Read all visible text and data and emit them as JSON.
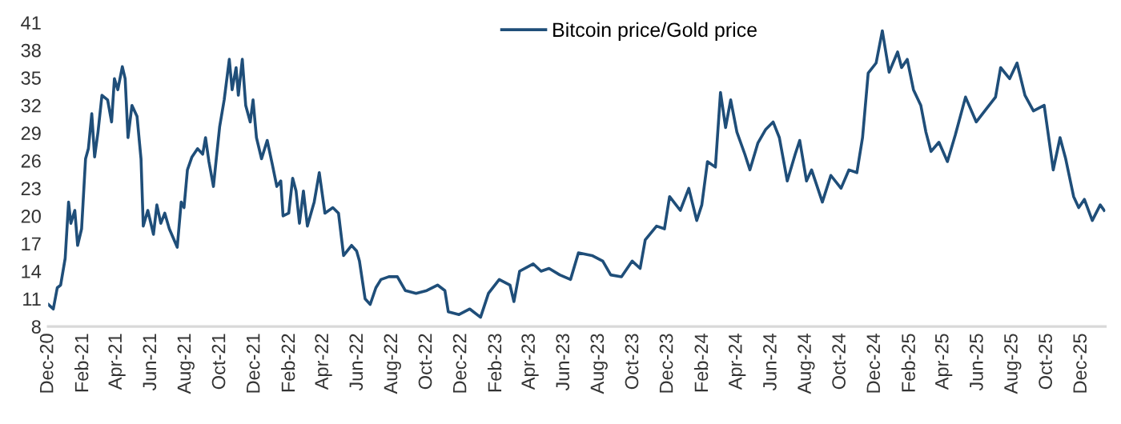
{
  "chart_data": {
    "type": "line",
    "x": [
      "2020-12-01",
      "2020-12-10",
      "2020-12-17",
      "2020-12-23",
      "2020-12-31",
      "2021-01-06",
      "2021-01-10",
      "2021-01-17",
      "2021-01-22",
      "2021-01-29",
      "2021-02-05",
      "2021-02-10",
      "2021-02-16",
      "2021-02-21",
      "2021-02-27",
      "2021-03-06",
      "2021-03-16",
      "2021-03-23",
      "2021-03-28",
      "2021-04-03",
      "2021-04-11",
      "2021-04-16",
      "2021-04-21",
      "2021-04-28",
      "2021-05-07",
      "2021-05-14",
      "2021-05-18",
      "2021-05-26",
      "2021-06-05",
      "2021-06-11",
      "2021-06-18",
      "2021-06-25",
      "2021-07-03",
      "2021-07-17",
      "2021-07-24",
      "2021-07-29",
      "2021-08-04",
      "2021-08-12",
      "2021-08-22",
      "2021-08-31",
      "2021-09-05",
      "2021-09-11",
      "2021-09-19",
      "2021-09-24",
      "2021-09-30",
      "2021-10-08",
      "2021-10-17",
      "2021-10-22",
      "2021-10-29",
      "2021-11-02",
      "2021-11-09",
      "2021-11-15",
      "2021-11-23",
      "2021-11-28",
      "2021-12-04",
      "2021-12-13",
      "2021-12-23",
      "2022-01-01",
      "2022-01-09",
      "2022-01-16",
      "2022-01-20",
      "2022-01-30",
      "2022-02-06",
      "2022-02-12",
      "2022-02-18",
      "2022-02-25",
      "2022-03-04",
      "2022-03-16",
      "2022-03-25",
      "2022-04-04",
      "2022-04-18",
      "2022-04-28",
      "2022-05-07",
      "2022-05-21",
      "2022-05-30",
      "2022-06-04",
      "2022-06-14",
      "2022-06-23",
      "2022-07-03",
      "2022-07-12",
      "2022-07-26",
      "2022-08-10",
      "2022-08-24",
      "2022-09-12",
      "2022-10-01",
      "2022-10-20",
      "2022-11-02",
      "2022-11-08",
      "2022-11-27",
      "2022-12-16",
      "2023-01-04",
      "2023-01-18",
      "2023-02-06",
      "2023-02-25",
      "2023-03-04",
      "2023-03-14",
      "2023-04-07",
      "2023-04-21",
      "2023-05-05",
      "2023-05-24",
      "2023-06-12",
      "2023-06-26",
      "2023-07-20",
      "2023-08-08",
      "2023-08-22",
      "2023-09-10",
      "2023-09-29",
      "2023-10-13",
      "2023-10-22",
      "2023-11-11",
      "2023-11-25",
      "2023-12-04",
      "2023-12-23",
      "2024-01-07",
      "2024-01-21",
      "2024-01-30",
      "2024-02-09",
      "2024-02-23",
      "2024-03-03",
      "2024-03-12",
      "2024-03-21",
      "2024-04-01",
      "2024-04-15",
      "2024-04-24",
      "2024-05-08",
      "2024-05-22",
      "2024-06-04",
      "2024-06-15",
      "2024-06-29",
      "2024-07-13",
      "2024-07-21",
      "2024-08-02",
      "2024-08-11",
      "2024-08-30",
      "2024-09-14",
      "2024-10-02",
      "2024-10-16",
      "2024-10-30",
      "2024-11-09",
      "2024-11-19",
      "2024-12-03",
      "2024-12-14",
      "2024-12-26",
      "2025-01-10",
      "2025-01-17",
      "2025-01-27",
      "2025-02-07",
      "2025-02-20",
      "2025-03-01",
      "2025-03-10",
      "2025-03-24",
      "2025-04-08",
      "2025-04-22",
      "2025-05-10",
      "2025-05-29",
      "2025-06-13",
      "2025-07-02",
      "2025-07-11",
      "2025-07-27",
      "2025-08-09",
      "2025-08-23",
      "2025-09-07",
      "2025-09-26",
      "2025-10-12",
      "2025-10-24",
      "2025-11-03",
      "2025-11-17",
      "2025-11-26",
      "2025-12-06",
      "2025-12-20",
      "2026-01-03",
      "2026-01-10"
    ],
    "series": [
      {
        "name": "Bitcoin price/Gold price",
        "color": "#1f4e79",
        "values": [
          10.4,
          9.9,
          12.2,
          12.5,
          15.4,
          21.5,
          19.2,
          20.6,
          16.8,
          18.6,
          26.2,
          27.3,
          31.1,
          26.4,
          29.1,
          33.1,
          32.6,
          30.2,
          34.9,
          33.7,
          36.2,
          34.9,
          28.5,
          32.0,
          30.8,
          26.2,
          18.9,
          20.6,
          18.0,
          21.2,
          19.2,
          20.3,
          18.6,
          16.6,
          21.5,
          20.9,
          25.0,
          26.4,
          27.3,
          26.7,
          28.5,
          25.9,
          23.2,
          26.2,
          29.7,
          32.6,
          37.0,
          33.7,
          36.1,
          33.1,
          37.0,
          32.0,
          30.2,
          32.6,
          28.5,
          26.2,
          28.2,
          25.6,
          23.2,
          23.8,
          20.0,
          20.3,
          24.1,
          22.7,
          19.2,
          22.7,
          18.9,
          21.5,
          24.7,
          20.3,
          20.9,
          20.3,
          15.7,
          16.8,
          16.2,
          15.1,
          11.0,
          10.4,
          12.2,
          13.1,
          13.4,
          13.4,
          11.9,
          11.6,
          11.9,
          12.5,
          11.9,
          9.6,
          9.3,
          9.9,
          9.0,
          11.6,
          13.1,
          12.5,
          10.7,
          14.0,
          14.8,
          14.0,
          14.3,
          13.6,
          13.1,
          16.0,
          15.7,
          15.1,
          13.6,
          13.4,
          15.1,
          14.3,
          17.4,
          18.9,
          18.6,
          22.1,
          20.6,
          23.0,
          19.5,
          21.2,
          25.9,
          25.3,
          33.4,
          29.6,
          32.6,
          29.1,
          26.7,
          25.0,
          27.9,
          29.4,
          30.2,
          28.5,
          23.8,
          26.7,
          28.2,
          23.8,
          25.0,
          21.5,
          24.4,
          23.0,
          25.0,
          24.7,
          28.5,
          35.5,
          36.6,
          40.1,
          35.6,
          37.8,
          36.1,
          37.0,
          33.7,
          32.0,
          29.1,
          27.0,
          28.0,
          25.9,
          28.8,
          32.9,
          30.2,
          31.4,
          32.9,
          36.1,
          34.9,
          36.6,
          33.1,
          31.4,
          32.0,
          25.0,
          28.5,
          26.2,
          22.1,
          20.9,
          21.8,
          19.5,
          21.2,
          20.6
        ]
      }
    ],
    "xlim": [
      "2020-12-01",
      "2026-01-12"
    ],
    "xticks": [
      {
        "value": "2020-12-01",
        "label": "Dec-20"
      },
      {
        "value": "2021-02-01",
        "label": "Feb-21"
      },
      {
        "value": "2021-04-01",
        "label": "Apr-21"
      },
      {
        "value": "2021-06-01",
        "label": "Jun-21"
      },
      {
        "value": "2021-08-01",
        "label": "Aug-21"
      },
      {
        "value": "2021-10-01",
        "label": "Oct-21"
      },
      {
        "value": "2021-12-01",
        "label": "Dec-21"
      },
      {
        "value": "2022-02-01",
        "label": "Feb-22"
      },
      {
        "value": "2022-04-01",
        "label": "Apr-22"
      },
      {
        "value": "2022-06-01",
        "label": "Jun-22"
      },
      {
        "value": "2022-08-01",
        "label": "Aug-22"
      },
      {
        "value": "2022-10-01",
        "label": "Oct-22"
      },
      {
        "value": "2022-12-01",
        "label": "Dec-22"
      },
      {
        "value": "2023-02-01",
        "label": "Feb-23"
      },
      {
        "value": "2023-04-01",
        "label": "Apr-23"
      },
      {
        "value": "2023-06-01",
        "label": "Jun-23"
      },
      {
        "value": "2023-08-01",
        "label": "Aug-23"
      },
      {
        "value": "2023-10-01",
        "label": "Oct-23"
      },
      {
        "value": "2023-12-01",
        "label": "Dec-23"
      },
      {
        "value": "2024-02-01",
        "label": "Feb-24"
      },
      {
        "value": "2024-04-01",
        "label": "Apr-24"
      },
      {
        "value": "2024-06-01",
        "label": "Jun-24"
      },
      {
        "value": "2024-08-01",
        "label": "Aug-24"
      },
      {
        "value": "2024-10-01",
        "label": "Oct-24"
      },
      {
        "value": "2024-12-01",
        "label": "Dec-24"
      },
      {
        "value": "2025-02-01",
        "label": "Feb-25"
      },
      {
        "value": "2025-04-01",
        "label": "Apr-25"
      },
      {
        "value": "2025-06-01",
        "label": "Jun-25"
      },
      {
        "value": "2025-08-01",
        "label": "Aug-25"
      },
      {
        "value": "2025-10-01",
        "label": "Oct-25"
      },
      {
        "value": "2025-12-01",
        "label": "Dec-25"
      }
    ],
    "ylim": [
      8,
      41
    ],
    "yticks": [
      8,
      11,
      14,
      17,
      20,
      23,
      26,
      29,
      32,
      35,
      38,
      41
    ],
    "grid": false,
    "legend": "top",
    "line_style": "solid",
    "marker": "none"
  }
}
